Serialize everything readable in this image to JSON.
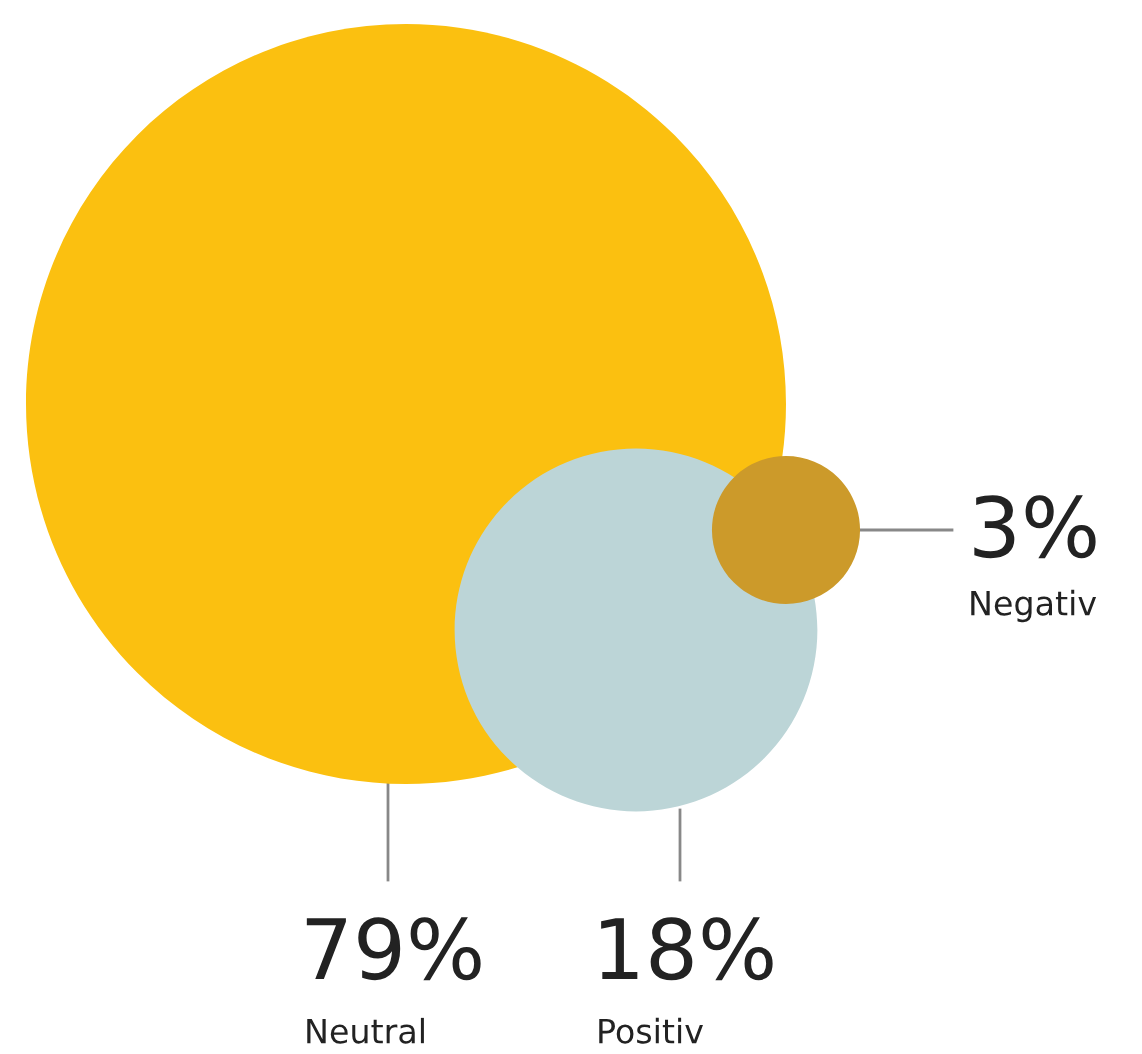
{
  "chart_data": {
    "type": "other",
    "categories": [
      "Neutral",
      "Positiv",
      "Negativ"
    ],
    "values": [
      79,
      18,
      3
    ],
    "value_labels": [
      "79%",
      "18%",
      "3%"
    ],
    "colors": [
      "#fbc010",
      "#bcd5d7",
      "#cc9a2a"
    ]
  }
}
